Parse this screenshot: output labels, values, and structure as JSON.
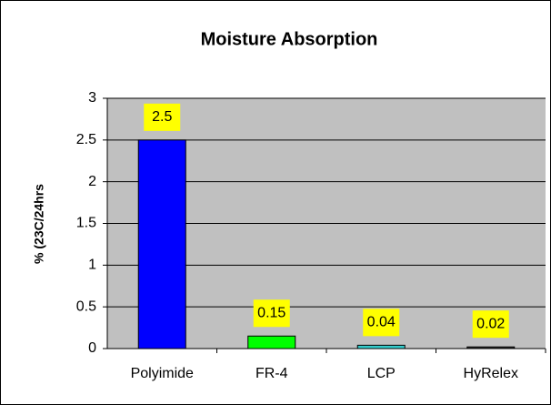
{
  "chart_data": {
    "type": "bar",
    "title": "Moisture Absorption",
    "y_label": "% (23C/24hrs",
    "categories": [
      "Polyimide",
      "FR-4",
      "LCP",
      "HyRelex"
    ],
    "values": [
      2.5,
      0.15,
      0.04,
      0.02
    ],
    "colors": [
      "#0000ff",
      "#00ff00",
      "#33cccc",
      "#333333"
    ],
    "ylim": [
      0,
      3
    ],
    "yticks": [
      0,
      0.5,
      1,
      1.5,
      2,
      2.5,
      3
    ],
    "grid": true
  }
}
